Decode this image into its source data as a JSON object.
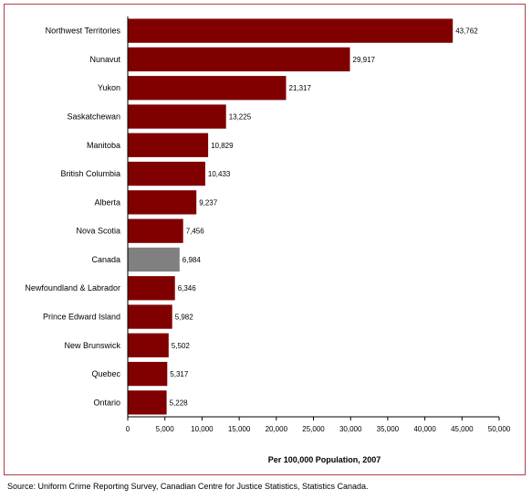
{
  "chart_data": {
    "type": "bar",
    "orientation": "horizontal",
    "categories": [
      "Northwest Territories",
      "Nunavut",
      "Yukon",
      "Saskatchewan",
      "Manitoba",
      "British Columbia",
      "Alberta",
      "Nova Scotia",
      "Canada",
      "Newfoundland & Labrador",
      "Prince Edward Island",
      "New Brunswick",
      "Quebec",
      "Ontario"
    ],
    "values": [
      43762,
      29917,
      21317,
      13225,
      10829,
      10433,
      9237,
      7456,
      6984,
      6346,
      5982,
      5502,
      5317,
      5228
    ],
    "value_labels": [
      "43,762",
      "29,917",
      "21,317",
      "13,225",
      "10,829",
      "10,433",
      "9,237",
      "7,456",
      "6,984",
      "6,346",
      "5,982",
      "5,502",
      "5,317",
      "5,228"
    ],
    "xlabel": "Per 100,000 Population, 2007",
    "ylabel": "",
    "xlim": [
      0,
      50000
    ],
    "x_ticks": [
      0,
      5000,
      10000,
      15000,
      20000,
      25000,
      30000,
      35000,
      40000,
      45000,
      50000
    ],
    "x_tick_labels": [
      "0",
      "5,000",
      "10,000",
      "15,000",
      "20,000",
      "25,000",
      "30,000",
      "35,000",
      "40,000",
      "45,000",
      "50,000"
    ],
    "grid": false,
    "colors": {
      "bar": "#800000",
      "highlight_bar": "#808080",
      "frame": "#b0413e"
    },
    "highlight_category": "Canada"
  },
  "source_note": "Source:  Uniform Crime Reporting Survey, Canadian Centre for Justice Statistics, Statistics Canada."
}
